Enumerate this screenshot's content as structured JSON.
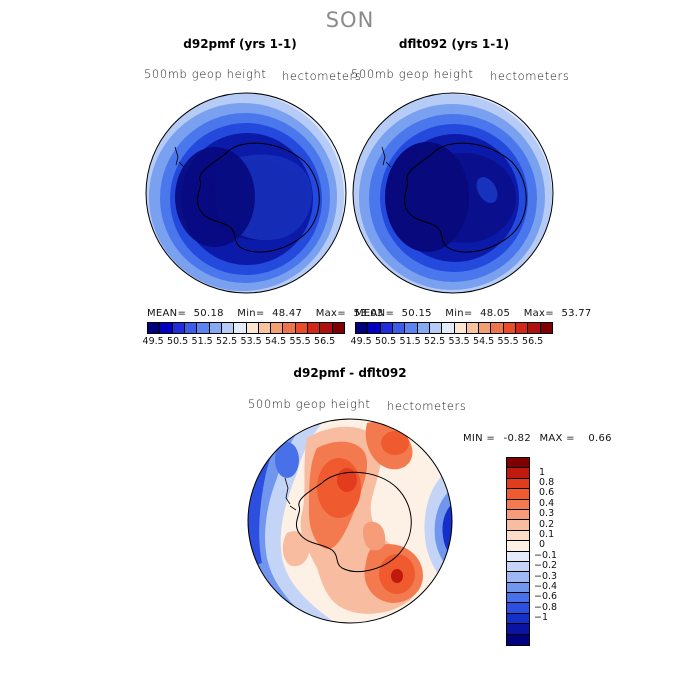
{
  "season": "SON",
  "panels": {
    "left": {
      "title": "d92pmf (yrs 1-1)",
      "variable": "500mb geop height",
      "units": "hectometers",
      "stats": {
        "mean_label": "MEAN=",
        "mean": "50.18",
        "min_label": "Min=",
        "min": "48.47",
        "max_label": "Max=",
        "max": "53.03"
      }
    },
    "right": {
      "title": "dflt092 (yrs 1-1)",
      "variable": "500mb geop height",
      "units": "hectometers",
      "stats": {
        "mean_label": "MEAN=",
        "mean": "50.15",
        "min_label": "Min=",
        "min": "48.05",
        "max_label": "Max=",
        "max": "53.77"
      }
    },
    "diff": {
      "title": "d92pmf - dflt092",
      "variable": "500mb geop height",
      "units": "hectometers",
      "stats": {
        "min_label": "MIN =",
        "min": "-0.82",
        "max_label": "MAX =",
        "max": "0.66"
      }
    }
  },
  "colorbar_top": {
    "colors": [
      "#00007f",
      "#0000bd",
      "#1f2fd9",
      "#3a5ee8",
      "#5b84f0",
      "#87a8f3",
      "#b6cbf6",
      "#e3ebf9",
      "#fbe6d3",
      "#f8c4a0",
      "#f49e74",
      "#ef744c",
      "#e84d2b",
      "#d22818",
      "#ae110f",
      "#800000"
    ],
    "tick_labels": [
      "49.5",
      "50.5",
      "51.5",
      "52.5",
      "53.5",
      "54.5",
      "55.5",
      "56.5"
    ]
  },
  "colorbar_diff": {
    "colors": [
      "#800000",
      "#c01a0f",
      "#e03c1d",
      "#ef5a2e",
      "#f37a4e",
      "#f69c78",
      "#f8bca0",
      "#fbdcc8",
      "#fdf0e4",
      "#e4ecfb",
      "#c3d4f6",
      "#9db8f2",
      "#7096ee",
      "#4870e9",
      "#2c4fe0",
      "#1530c8",
      "#0a14a0",
      "#000080"
    ],
    "tick_labels": [
      "1",
      "0.8",
      "0.6",
      "0.4",
      "0.3",
      "0.2",
      "0.1",
      "0",
      "−0.1",
      "−0.2",
      "−0.3",
      "−0.4",
      "−0.6",
      "−0.8",
      "−1"
    ]
  }
}
